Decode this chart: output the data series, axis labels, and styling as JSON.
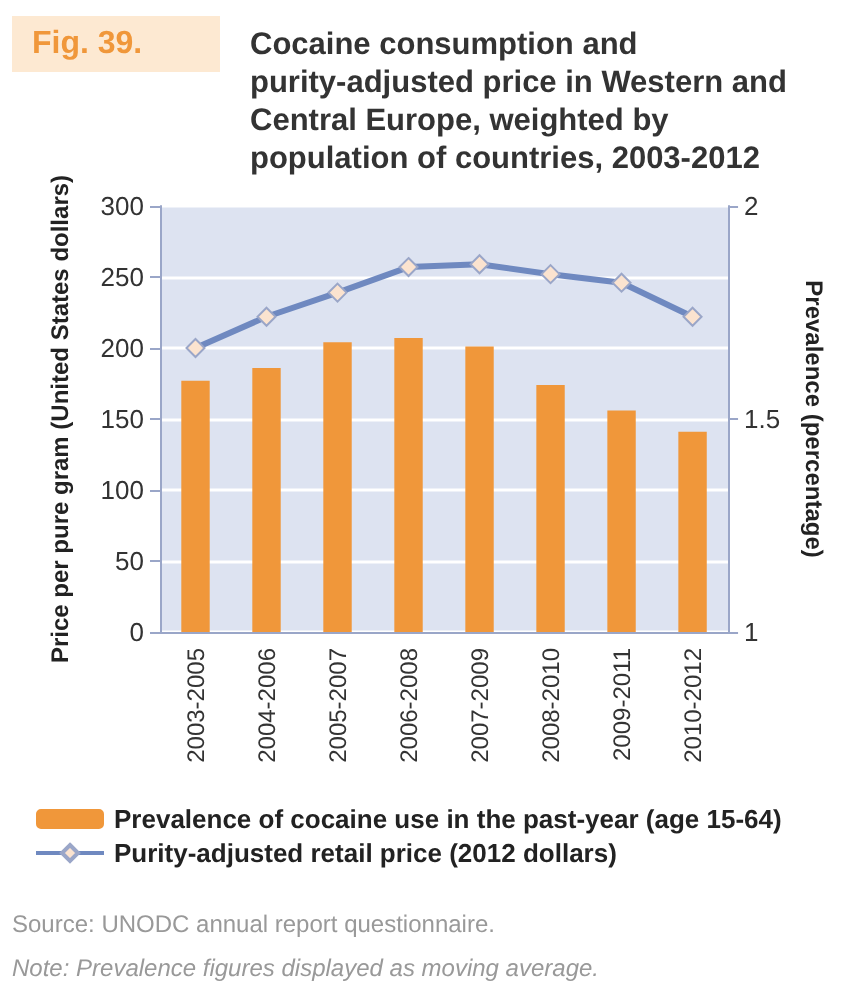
{
  "chart_data": {
    "type": "bar",
    "title": "Cocaine consumption and purity-adjusted price in Western and Central Europe, weighted by population of countries, 2003-2012",
    "categories": [
      "2003-2005",
      "2004-2006",
      "2005-2007",
      "2006-2008",
      "2007-2009",
      "2008-2010",
      "2009-2011",
      "2010-2012"
    ],
    "series": [
      {
        "name": "Prevalence of cocaine use in the past-year (age 15-64)",
        "axis": "y2",
        "color": "#f0973a",
        "values": [
          1.59,
          1.62,
          1.68,
          1.69,
          1.67,
          1.58,
          1.52,
          1.47
        ]
      },
      {
        "name": "Purity-adjusted retail price (2012 dollars)",
        "type": "line",
        "color": "#6f89c0",
        "marker": "diamond",
        "values": [
          200,
          222,
          239,
          257,
          259,
          252,
          246,
          222
        ]
      }
    ],
    "ylabel": "Price per pure gram (United States dollars)",
    "y2label": "Prevalence (percentage)",
    "ylim": [
      0,
      300
    ],
    "yticks": [
      0,
      50,
      100,
      150,
      200,
      250,
      300
    ],
    "y2lim": [
      1,
      2
    ],
    "y2ticks": [
      1,
      1.5,
      2
    ],
    "grid": "y",
    "legend": "bottom left",
    "annotations": [
      "Fig. 39.",
      "Source: UNODC annual report questionnaire.",
      "Note: Prevalence figures displayed as moving average."
    ]
  }
}
